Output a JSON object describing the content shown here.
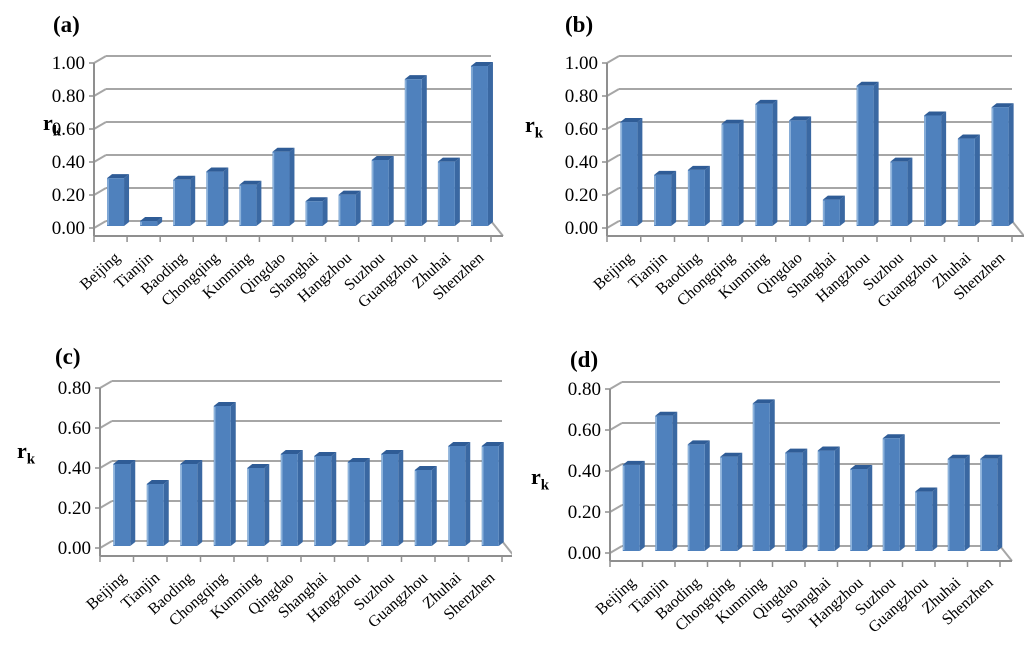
{
  "figure": {
    "background": "#ffffff",
    "ylabel": {
      "base": "r",
      "sub": "k"
    },
    "colors": {
      "bar_front": "#4f81bd",
      "bar_top": "#2f5c96",
      "bar_side": "#3a68a2",
      "bar_highlight": "#8db3dc",
      "grid": "#a6a6a6",
      "axis": "#8f8f8f",
      "text": "#000000"
    }
  },
  "chart_data": [
    {
      "type": "bar",
      "label": "(a)",
      "ylabel": "rk",
      "xlabel": "",
      "grid": true,
      "legend": "none",
      "ylim": [
        0,
        1.0
      ],
      "yticks": [
        "0.00",
        "0.20",
        "0.40",
        "0.60",
        "0.80",
        "1.00"
      ],
      "categories": [
        "Beijing",
        "Tianjin",
        "Baoding",
        "Chongqing",
        "Kunming",
        "Qingdao",
        "Shanghai",
        "Hangzhou",
        "Suzhou",
        "Guangzhou",
        "Zhuhai",
        "Shenzhen"
      ],
      "values": [
        0.29,
        0.03,
        0.28,
        0.33,
        0.25,
        0.45,
        0.15,
        0.19,
        0.4,
        0.89,
        0.39,
        0.97
      ]
    },
    {
      "type": "bar",
      "label": "(b)",
      "ylabel": "rk",
      "xlabel": "",
      "grid": true,
      "legend": "none",
      "ylim": [
        0,
        1.0
      ],
      "yticks": [
        "0.00",
        "0.20",
        "0.40",
        "0.60",
        "0.80",
        "1.00"
      ],
      "categories": [
        "Beijing",
        "Tianjin",
        "Baoding",
        "Chongqing",
        "Kunming",
        "Qingdao",
        "Shanghai",
        "Hangzhou",
        "Suzhou",
        "Guangzhou",
        "Zhuhai",
        "Shenzhen"
      ],
      "values": [
        0.63,
        0.31,
        0.34,
        0.62,
        0.74,
        0.64,
        0.16,
        0.85,
        0.39,
        0.67,
        0.53,
        0.72
      ]
    },
    {
      "type": "bar",
      "label": "(c)",
      "ylabel": "rk",
      "xlabel": "",
      "grid": true,
      "legend": "none",
      "ylim": [
        0,
        0.8
      ],
      "yticks": [
        "0.00",
        "0.20",
        "0.40",
        "0.60",
        "0.80"
      ],
      "categories": [
        "Beijing",
        "Tianjin",
        "Baoding",
        "Chongqing",
        "Kunming",
        "Qingdao",
        "Shanghai",
        "Hangzhou",
        "Suzhou",
        "Guangzhou",
        "Zhuhai",
        "Shenzhen"
      ],
      "values": [
        0.41,
        0.31,
        0.41,
        0.7,
        0.39,
        0.46,
        0.45,
        0.42,
        0.46,
        0.38,
        0.5,
        0.5
      ]
    },
    {
      "type": "bar",
      "label": "(d)",
      "ylabel": "rk",
      "xlabel": "",
      "grid": true,
      "legend": "none",
      "ylim": [
        0,
        0.8
      ],
      "yticks": [
        "0.00",
        "0.20",
        "0.40",
        "0.60",
        "0.80"
      ],
      "categories": [
        "Beijing",
        "Tianjin",
        "Baoding",
        "Chongqing",
        "Kunming",
        "Qingdao",
        "Shanghai",
        "Hangzhou",
        "Suzhou",
        "Guangzhou",
        "Zhuhai",
        "Shenzhen"
      ],
      "values": [
        0.42,
        0.66,
        0.52,
        0.46,
        0.72,
        0.48,
        0.49,
        0.4,
        0.55,
        0.29,
        0.45,
        0.45
      ]
    }
  ]
}
